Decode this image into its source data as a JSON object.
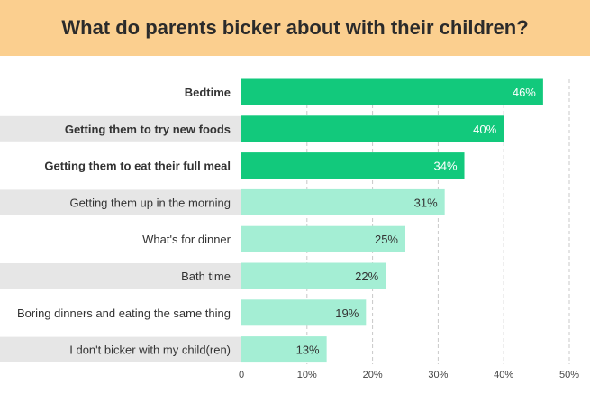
{
  "header": {
    "title": "What do parents bicker about with their children?"
  },
  "chart_data": {
    "type": "bar",
    "orientation": "horizontal",
    "title": "What do parents bicker about with their children?",
    "xlabel": "",
    "ylabel": "",
    "xlim": [
      0,
      50
    ],
    "ticks": [
      0,
      10,
      20,
      30,
      40,
      50
    ],
    "tick_labels": [
      "0",
      "10%",
      "20%",
      "30%",
      "40%",
      "50%"
    ],
    "grid": "vertical dashed",
    "categories": [
      "Bedtime",
      "Getting them to try new foods",
      "Getting them to eat their full meal",
      "Getting them up in the morning",
      "What's for dinner",
      "Bath time",
      "Boring dinners and eating the same thing",
      "I don't bicker with my child(ren)"
    ],
    "values": [
      46,
      40,
      34,
      31,
      25,
      22,
      19,
      13
    ],
    "value_labels": [
      "46%",
      "40%",
      "34%",
      "31%",
      "25%",
      "22%",
      "19%",
      "13%"
    ],
    "highlighted": [
      true,
      true,
      true,
      false,
      false,
      false,
      false,
      false
    ],
    "colors": {
      "highlight_bar": "#12c97c",
      "normal_bar": "#a4eed4",
      "row_band": "#e6e6e6",
      "grid": "#c8c8c8",
      "header_bg": "#fbcf8f"
    }
  }
}
